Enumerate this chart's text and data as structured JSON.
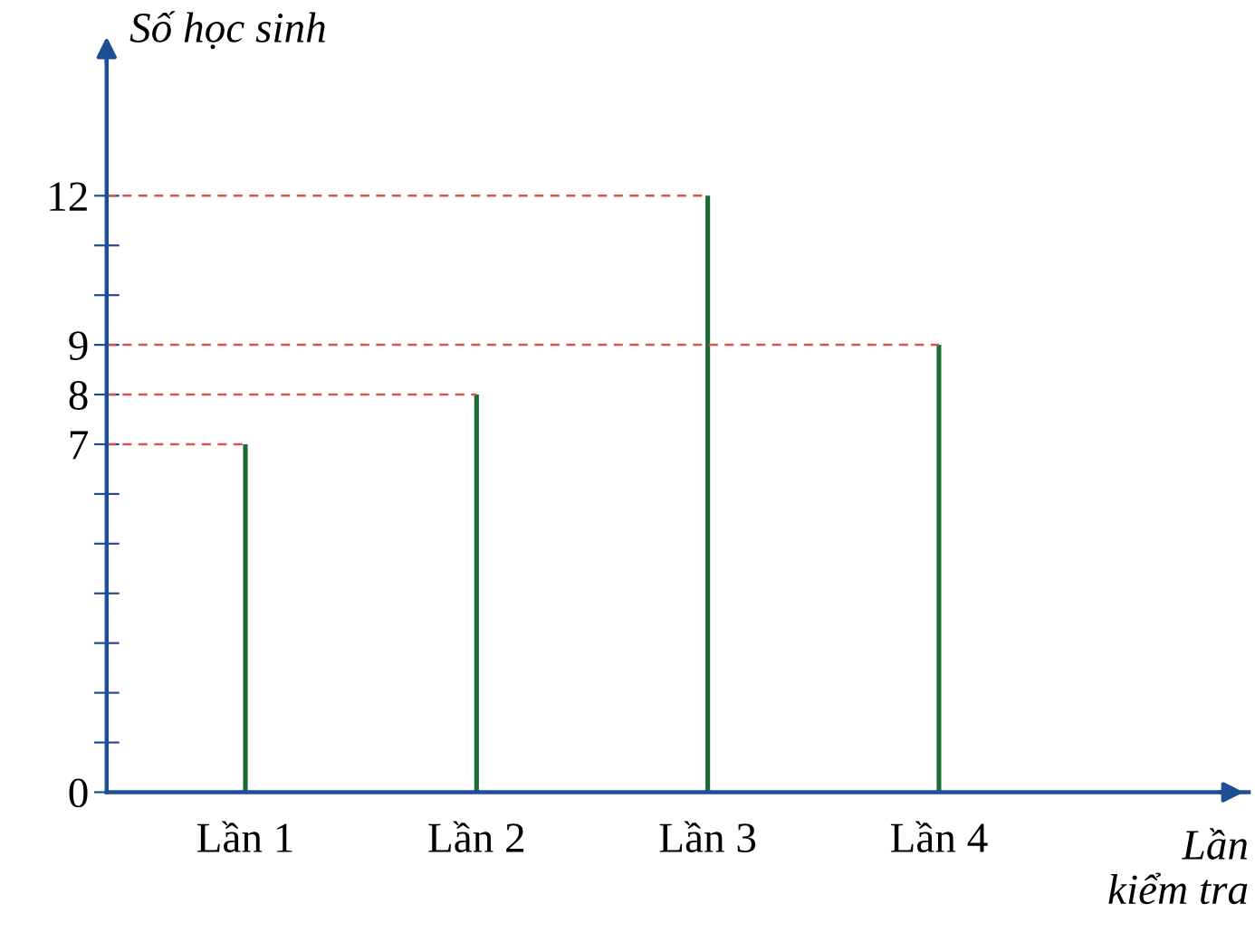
{
  "chart_data": {
    "type": "bar",
    "ylabel": "Số học sinh",
    "xlabel": "Lần\nkiểm tra",
    "categories": [
      "Lần 1",
      "Lần 2",
      "Lần 3",
      "Lần 4"
    ],
    "values": [
      7,
      8,
      12,
      9
    ],
    "color": "#1b6b35",
    "ylim": [
      0,
      15
    ],
    "yticks": [
      0,
      {
        "value": 1,
        "label": null
      },
      {
        "value": 2,
        "label": null
      },
      {
        "value": 3,
        "label": null
      },
      {
        "value": 4,
        "label": null
      },
      {
        "value": 5,
        "label": null
      },
      {
        "value": 6,
        "label": null
      },
      7,
      8,
      9,
      {
        "value": 10,
        "label": null
      },
      {
        "value": 11,
        "label": null
      },
      12
    ],
    "ref_lines": [
      {
        "axis": "y",
        "value": 7,
        "color": "#d9534f",
        "line_style": "dashed"
      },
      {
        "axis": "y",
        "value": 8,
        "color": "#d9534f",
        "line_style": "dashed"
      },
      {
        "axis": "y",
        "value": 9,
        "color": "#d9534f",
        "line_style": "dashed"
      },
      {
        "axis": "y",
        "value": 12,
        "color": "#d9534f",
        "line_style": "dashed"
      }
    ],
    "grid": false,
    "legend": false
  }
}
